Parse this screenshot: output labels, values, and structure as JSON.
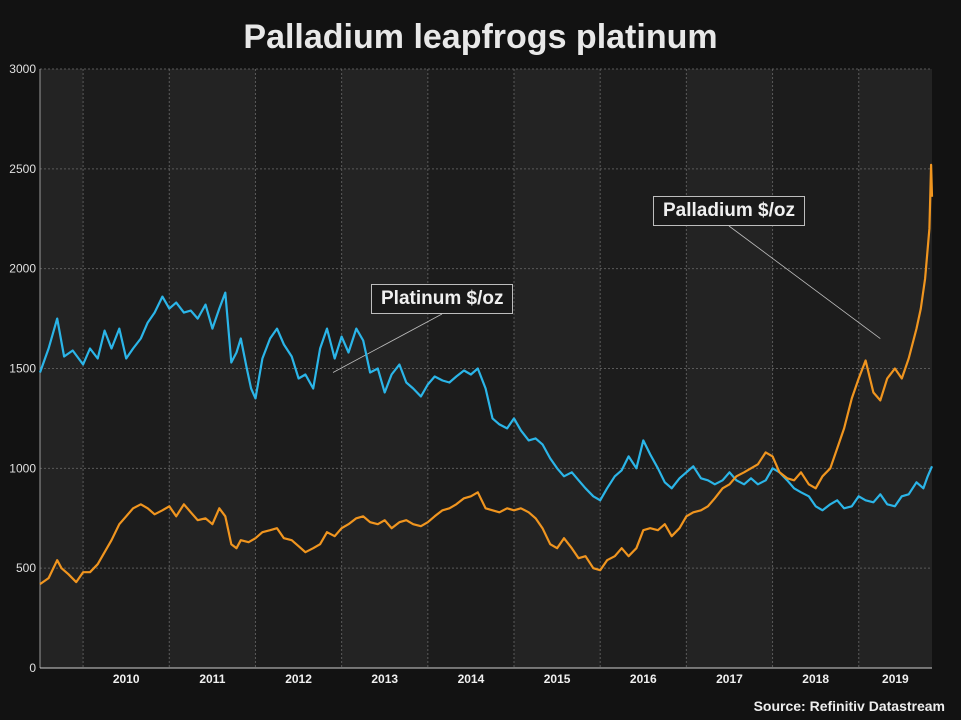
{
  "chart_data": {
    "type": "line",
    "title": "Palladium leapfrogs platinum",
    "source": "Source: Refinitiv Datastream",
    "xlabel": "",
    "ylabel": "",
    "ylim": [
      0,
      3000
    ],
    "yticks": [
      0,
      500,
      1000,
      1500,
      2000,
      2500,
      3000
    ],
    "xlim": [
      2009.5,
      2019.85
    ],
    "xtick_labels": [
      "2010",
      "2011",
      "2012",
      "2013",
      "2014",
      "2015",
      "2016",
      "2017",
      "2018",
      "2019"
    ],
    "grid": true,
    "annotations": [
      {
        "text": "Platinum $/oz",
        "series": "Platinum $/oz",
        "x": 2012.9,
        "y": 1480
      },
      {
        "text": "Palladium $/oz",
        "series": "Palladium $/oz",
        "x": 2019.25,
        "y": 1650
      }
    ],
    "series": [
      {
        "name": "Platinum $/oz",
        "color": "#2bb5e8",
        "points": [
          [
            2009.5,
            1480
          ],
          [
            2009.6,
            1600
          ],
          [
            2009.7,
            1750
          ],
          [
            2009.78,
            1560
          ],
          [
            2009.88,
            1590
          ],
          [
            2010.0,
            1520
          ],
          [
            2010.08,
            1600
          ],
          [
            2010.17,
            1550
          ],
          [
            2010.25,
            1690
          ],
          [
            2010.33,
            1600
          ],
          [
            2010.42,
            1700
          ],
          [
            2010.5,
            1550
          ],
          [
            2010.58,
            1600
          ],
          [
            2010.67,
            1650
          ],
          [
            2010.75,
            1730
          ],
          [
            2010.83,
            1780
          ],
          [
            2010.92,
            1860
          ],
          [
            2011.0,
            1800
          ],
          [
            2011.08,
            1830
          ],
          [
            2011.17,
            1780
          ],
          [
            2011.25,
            1790
          ],
          [
            2011.33,
            1750
          ],
          [
            2011.42,
            1820
          ],
          [
            2011.5,
            1700
          ],
          [
            2011.58,
            1800
          ],
          [
            2011.65,
            1880
          ],
          [
            2011.72,
            1530
          ],
          [
            2011.78,
            1580
          ],
          [
            2011.83,
            1650
          ],
          [
            2011.9,
            1500
          ],
          [
            2011.95,
            1400
          ],
          [
            2012.0,
            1350
          ],
          [
            2012.08,
            1550
          ],
          [
            2012.17,
            1650
          ],
          [
            2012.25,
            1700
          ],
          [
            2012.33,
            1620
          ],
          [
            2012.42,
            1560
          ],
          [
            2012.5,
            1450
          ],
          [
            2012.58,
            1470
          ],
          [
            2012.67,
            1400
          ],
          [
            2012.75,
            1600
          ],
          [
            2012.83,
            1700
          ],
          [
            2012.92,
            1550
          ],
          [
            2013.0,
            1660
          ],
          [
            2013.08,
            1580
          ],
          [
            2013.17,
            1700
          ],
          [
            2013.25,
            1640
          ],
          [
            2013.33,
            1480
          ],
          [
            2013.42,
            1500
          ],
          [
            2013.5,
            1380
          ],
          [
            2013.58,
            1470
          ],
          [
            2013.67,
            1520
          ],
          [
            2013.75,
            1430
          ],
          [
            2013.83,
            1400
          ],
          [
            2013.92,
            1360
          ],
          [
            2014.0,
            1420
          ],
          [
            2014.08,
            1460
          ],
          [
            2014.17,
            1440
          ],
          [
            2014.25,
            1430
          ],
          [
            2014.33,
            1460
          ],
          [
            2014.42,
            1490
          ],
          [
            2014.5,
            1470
          ],
          [
            2014.58,
            1500
          ],
          [
            2014.67,
            1400
          ],
          [
            2014.75,
            1250
          ],
          [
            2014.83,
            1220
          ],
          [
            2014.92,
            1200
          ],
          [
            2015.0,
            1250
          ],
          [
            2015.08,
            1190
          ],
          [
            2015.17,
            1140
          ],
          [
            2015.25,
            1150
          ],
          [
            2015.33,
            1120
          ],
          [
            2015.42,
            1050
          ],
          [
            2015.5,
            1000
          ],
          [
            2015.58,
            960
          ],
          [
            2015.67,
            980
          ],
          [
            2015.75,
            940
          ],
          [
            2015.83,
            900
          ],
          [
            2015.92,
            860
          ],
          [
            2016.0,
            840
          ],
          [
            2016.08,
            900
          ],
          [
            2016.17,
            960
          ],
          [
            2016.25,
            990
          ],
          [
            2016.33,
            1060
          ],
          [
            2016.42,
            1000
          ],
          [
            2016.5,
            1140
          ],
          [
            2016.58,
            1070
          ],
          [
            2016.67,
            1000
          ],
          [
            2016.75,
            930
          ],
          [
            2016.83,
            900
          ],
          [
            2016.92,
            950
          ],
          [
            2017.0,
            980
          ],
          [
            2017.08,
            1010
          ],
          [
            2017.17,
            950
          ],
          [
            2017.25,
            940
          ],
          [
            2017.33,
            920
          ],
          [
            2017.42,
            940
          ],
          [
            2017.5,
            980
          ],
          [
            2017.58,
            940
          ],
          [
            2017.67,
            920
          ],
          [
            2017.75,
            950
          ],
          [
            2017.83,
            920
          ],
          [
            2017.92,
            940
          ],
          [
            2018.0,
            1000
          ],
          [
            2018.08,
            980
          ],
          [
            2018.17,
            940
          ],
          [
            2018.25,
            900
          ],
          [
            2018.33,
            880
          ],
          [
            2018.42,
            860
          ],
          [
            2018.5,
            810
          ],
          [
            2018.58,
            790
          ],
          [
            2018.67,
            820
          ],
          [
            2018.75,
            840
          ],
          [
            2018.83,
            800
          ],
          [
            2018.92,
            810
          ],
          [
            2019.0,
            860
          ],
          [
            2019.08,
            840
          ],
          [
            2019.17,
            830
          ],
          [
            2019.25,
            870
          ],
          [
            2019.33,
            820
          ],
          [
            2019.42,
            810
          ],
          [
            2019.5,
            860
          ],
          [
            2019.58,
            870
          ],
          [
            2019.67,
            930
          ],
          [
            2019.75,
            900
          ],
          [
            2019.8,
            960
          ],
          [
            2019.85,
            1010
          ]
        ]
      },
      {
        "name": "Palladium $/oz",
        "color": "#f0951f",
        "points": [
          [
            2009.5,
            420
          ],
          [
            2009.6,
            450
          ],
          [
            2009.7,
            540
          ],
          [
            2009.75,
            500
          ],
          [
            2009.83,
            470
          ],
          [
            2009.92,
            430
          ],
          [
            2010.0,
            480
          ],
          [
            2010.08,
            480
          ],
          [
            2010.17,
            520
          ],
          [
            2010.25,
            580
          ],
          [
            2010.33,
            640
          ],
          [
            2010.42,
            720
          ],
          [
            2010.5,
            760
          ],
          [
            2010.58,
            800
          ],
          [
            2010.67,
            820
          ],
          [
            2010.75,
            800
          ],
          [
            2010.83,
            770
          ],
          [
            2010.92,
            790
          ],
          [
            2011.0,
            810
          ],
          [
            2011.08,
            760
          ],
          [
            2011.17,
            820
          ],
          [
            2011.25,
            780
          ],
          [
            2011.33,
            740
          ],
          [
            2011.42,
            750
          ],
          [
            2011.5,
            720
          ],
          [
            2011.58,
            800
          ],
          [
            2011.65,
            760
          ],
          [
            2011.72,
            620
          ],
          [
            2011.78,
            600
          ],
          [
            2011.83,
            640
          ],
          [
            2011.92,
            630
          ],
          [
            2012.0,
            650
          ],
          [
            2012.08,
            680
          ],
          [
            2012.17,
            690
          ],
          [
            2012.25,
            700
          ],
          [
            2012.33,
            650
          ],
          [
            2012.42,
            640
          ],
          [
            2012.5,
            610
          ],
          [
            2012.58,
            580
          ],
          [
            2012.67,
            600
          ],
          [
            2012.75,
            620
          ],
          [
            2012.83,
            680
          ],
          [
            2012.92,
            660
          ],
          [
            2013.0,
            700
          ],
          [
            2013.08,
            720
          ],
          [
            2013.17,
            750
          ],
          [
            2013.25,
            760
          ],
          [
            2013.33,
            730
          ],
          [
            2013.42,
            720
          ],
          [
            2013.5,
            740
          ],
          [
            2013.58,
            700
          ],
          [
            2013.67,
            730
          ],
          [
            2013.75,
            740
          ],
          [
            2013.83,
            720
          ],
          [
            2013.92,
            710
          ],
          [
            2014.0,
            730
          ],
          [
            2014.08,
            760
          ],
          [
            2014.17,
            790
          ],
          [
            2014.25,
            800
          ],
          [
            2014.33,
            820
          ],
          [
            2014.42,
            850
          ],
          [
            2014.5,
            860
          ],
          [
            2014.58,
            880
          ],
          [
            2014.67,
            800
          ],
          [
            2014.75,
            790
          ],
          [
            2014.83,
            780
          ],
          [
            2014.92,
            800
          ],
          [
            2015.0,
            790
          ],
          [
            2015.08,
            800
          ],
          [
            2015.17,
            780
          ],
          [
            2015.25,
            750
          ],
          [
            2015.33,
            700
          ],
          [
            2015.42,
            620
          ],
          [
            2015.5,
            600
          ],
          [
            2015.58,
            650
          ],
          [
            2015.67,
            600
          ],
          [
            2015.75,
            550
          ],
          [
            2015.83,
            560
          ],
          [
            2015.92,
            500
          ],
          [
            2016.0,
            490
          ],
          [
            2016.08,
            540
          ],
          [
            2016.17,
            560
          ],
          [
            2016.25,
            600
          ],
          [
            2016.33,
            560
          ],
          [
            2016.42,
            600
          ],
          [
            2016.5,
            690
          ],
          [
            2016.58,
            700
          ],
          [
            2016.67,
            690
          ],
          [
            2016.75,
            720
          ],
          [
            2016.83,
            660
          ],
          [
            2016.92,
            700
          ],
          [
            2017.0,
            760
          ],
          [
            2017.08,
            780
          ],
          [
            2017.17,
            790
          ],
          [
            2017.25,
            810
          ],
          [
            2017.33,
            850
          ],
          [
            2017.42,
            900
          ],
          [
            2017.5,
            920
          ],
          [
            2017.58,
            960
          ],
          [
            2017.67,
            980
          ],
          [
            2017.75,
            1000
          ],
          [
            2017.83,
            1020
          ],
          [
            2017.92,
            1080
          ],
          [
            2018.0,
            1060
          ],
          [
            2018.08,
            980
          ],
          [
            2018.17,
            950
          ],
          [
            2018.25,
            940
          ],
          [
            2018.33,
            980
          ],
          [
            2018.42,
            920
          ],
          [
            2018.5,
            900
          ],
          [
            2018.58,
            960
          ],
          [
            2018.67,
            1000
          ],
          [
            2018.75,
            1100
          ],
          [
            2018.83,
            1200
          ],
          [
            2018.92,
            1350
          ],
          [
            2019.0,
            1450
          ],
          [
            2019.08,
            1540
          ],
          [
            2019.17,
            1380
          ],
          [
            2019.25,
            1340
          ],
          [
            2019.33,
            1450
          ],
          [
            2019.42,
            1500
          ],
          [
            2019.5,
            1450
          ],
          [
            2019.58,
            1550
          ],
          [
            2019.67,
            1700
          ],
          [
            2019.72,
            1800
          ],
          [
            2019.77,
            1950
          ],
          [
            2019.82,
            2200
          ],
          [
            2019.84,
            2520
          ],
          [
            2019.85,
            2360
          ]
        ]
      }
    ]
  }
}
